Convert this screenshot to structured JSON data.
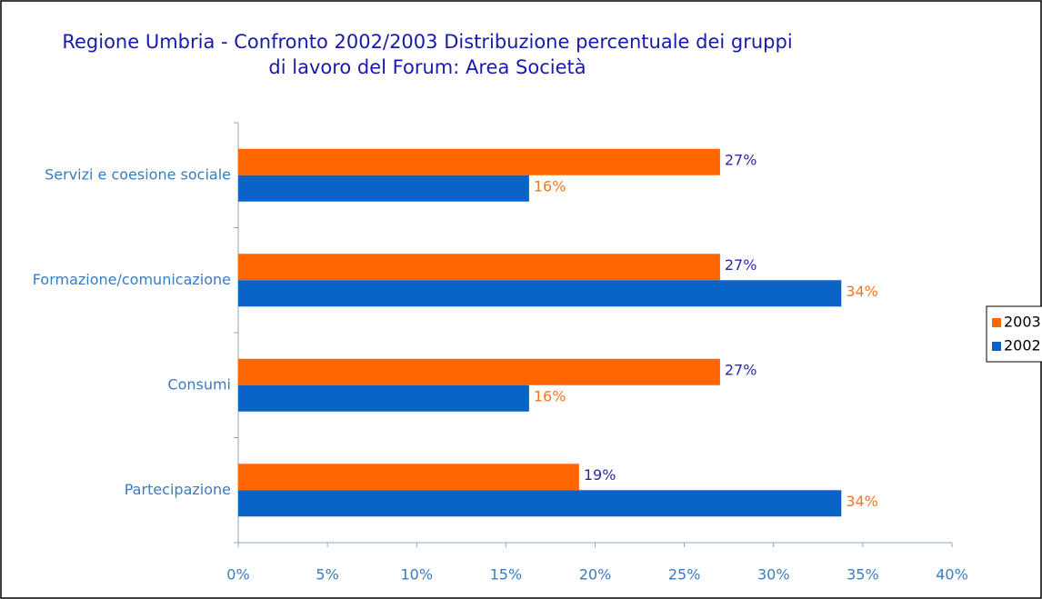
{
  "chart_data": {
    "type": "hbar",
    "title": [
      "Regione Umbria - Confronto 2002/2003 Distribuzione percentuale dei gruppi",
      "di lavoro del Forum: Area Società"
    ],
    "categories": [
      "Servizi e coesione sociale",
      "Formazione/comunicazione",
      "Consumi",
      "Partecipazione"
    ],
    "series": [
      {
        "name": "2003",
        "color": "#ff6600",
        "label_color": "#2a2aa0",
        "values": [
          27,
          27,
          27,
          19.1
        ],
        "value_labels": [
          "27%",
          "27%",
          "27%",
          "19%"
        ]
      },
      {
        "name": "2002",
        "color": "#0a64c8",
        "label_color": "#f07820",
        "values": [
          16.3,
          33.8,
          16.3,
          33.8
        ],
        "value_labels": [
          "16%",
          "34%",
          "16%",
          "34%"
        ]
      }
    ],
    "xlim": [
      0,
      40
    ],
    "xticks": [
      {
        "value": 0,
        "label": "0%"
      },
      {
        "value": 5,
        "label": "5%"
      },
      {
        "value": 10,
        "label": "10%"
      },
      {
        "value": 15,
        "label": "15%"
      },
      {
        "value": 20,
        "label": "20%"
      },
      {
        "value": 25,
        "label": "25%"
      },
      {
        "value": 30,
        "label": "30%"
      },
      {
        "value": 35,
        "label": "35%"
      },
      {
        "value": 40,
        "label": "40%"
      }
    ],
    "legend": "right"
  }
}
